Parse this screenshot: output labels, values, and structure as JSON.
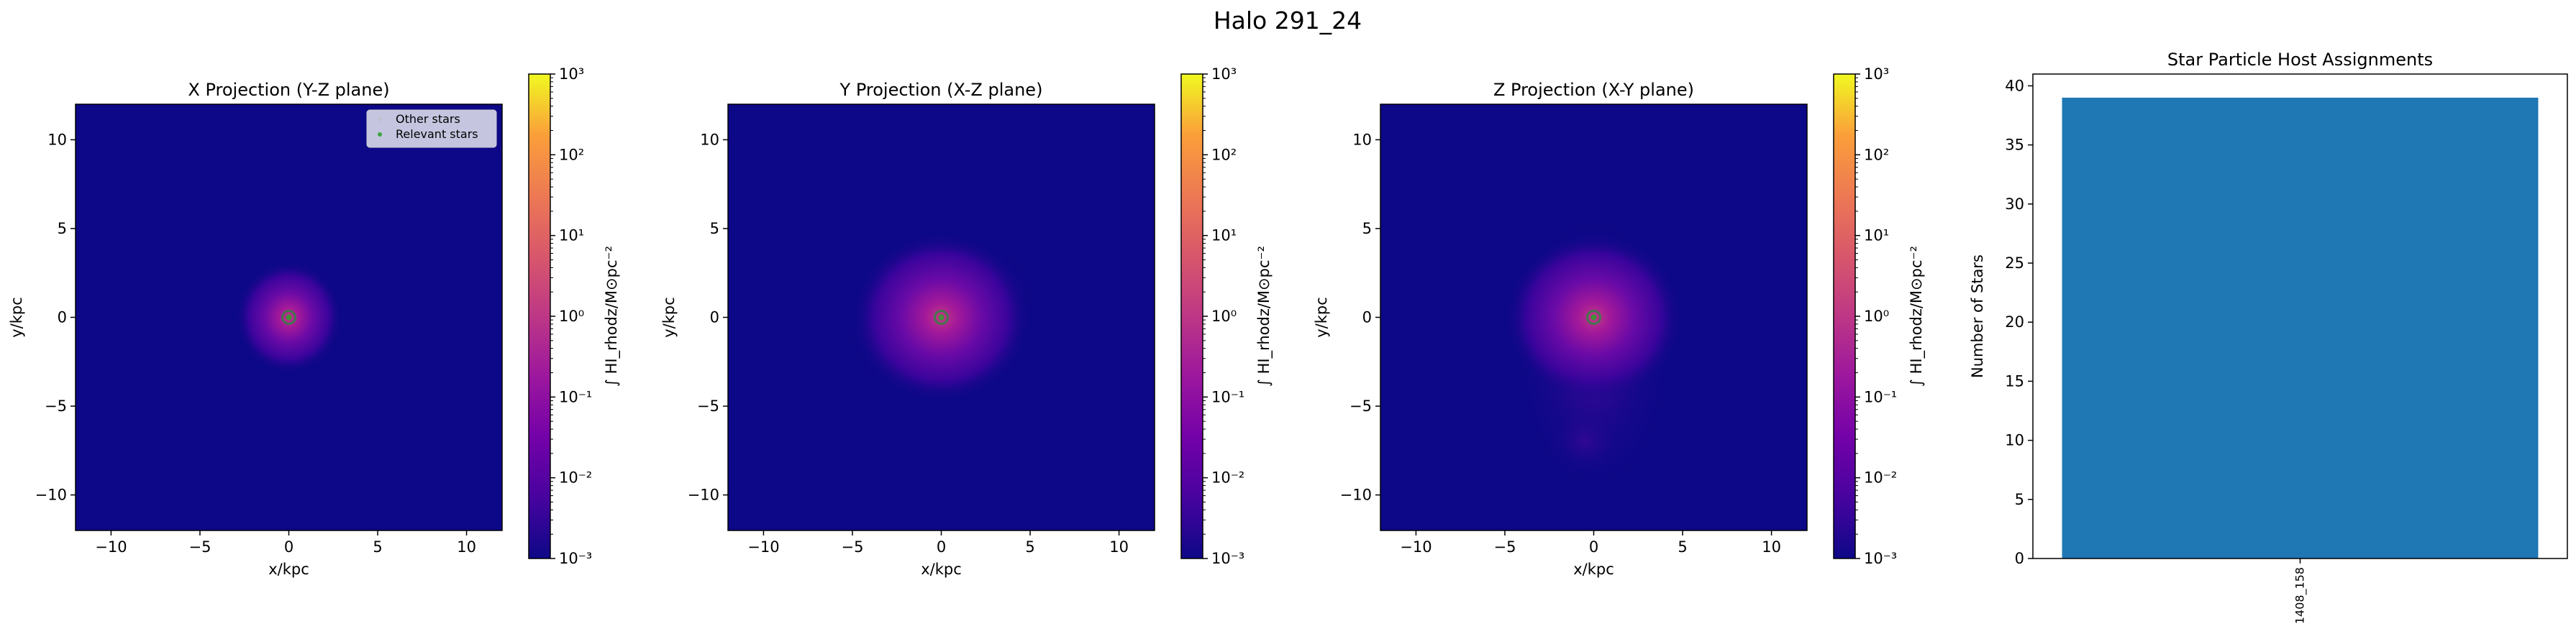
{
  "figure": {
    "suptitle": "Halo 291_24"
  },
  "chart_data": [
    {
      "type": "heatmap",
      "title": "X Projection (Y-Z plane)",
      "xlabel": "x/kpc",
      "ylabel": "y/kpc",
      "xlim": [
        -12,
        12
      ],
      "ylim": [
        -12,
        12
      ],
      "xticks": [
        -10,
        -5,
        0,
        5,
        10
      ],
      "yticks": [
        -10,
        -5,
        0,
        5,
        10
      ],
      "xtick_labels": [
        "−10",
        "−5",
        "0",
        "5",
        "10"
      ],
      "ytick_labels": [
        "−10",
        "−5",
        "0",
        "5",
        "10"
      ],
      "colormap": "plasma",
      "colorscale": "log",
      "color_range": [
        0.001,
        1000
      ],
      "colorbar_label": "∫ HI_rhodz/M⊙pc⁻²",
      "colorbar_ticks": [
        "10³",
        "10²",
        "10¹",
        "10⁰",
        "10⁻¹",
        "10⁻²",
        "10⁻³"
      ],
      "gas_blob": {
        "center": [
          0,
          0
        ],
        "extent_kpc": 3
      },
      "star_points": [
        [
          0,
          0
        ]
      ],
      "legend": {
        "position": "top-right",
        "entries": [
          "Other stars",
          "Relevant stars"
        ]
      }
    },
    {
      "type": "heatmap",
      "title": "Y Projection (X-Z plane)",
      "xlabel": "x/kpc",
      "ylabel": "y/kpc",
      "xlim": [
        -12,
        12
      ],
      "ylim": [
        -12,
        12
      ],
      "xticks": [
        -10,
        -5,
        0,
        5,
        10
      ],
      "yticks": [
        -10,
        -5,
        0,
        5,
        10
      ],
      "xtick_labels": [
        "−10",
        "−5",
        "0",
        "5",
        "10"
      ],
      "ytick_labels": [
        "−10",
        "−5",
        "0",
        "5",
        "10"
      ],
      "colormap": "plasma",
      "colorscale": "log",
      "color_range": [
        0.001,
        1000
      ],
      "colorbar_label": "∫ HI_rhodz/M⊙pc⁻²",
      "colorbar_ticks": [
        "10³",
        "10²",
        "10¹",
        "10⁰",
        "10⁻¹",
        "10⁻²",
        "10⁻³"
      ],
      "gas_blob": {
        "center": [
          0,
          0
        ],
        "extent_kpc": 5
      },
      "star_points": [
        [
          0,
          0
        ]
      ]
    },
    {
      "type": "heatmap",
      "title": "Z Projection (X-Y plane)",
      "xlabel": "x/kpc",
      "ylabel": "y/kpc",
      "xlim": [
        -12,
        12
      ],
      "ylim": [
        -12,
        12
      ],
      "xticks": [
        -10,
        -5,
        0,
        5,
        10
      ],
      "yticks": [
        -10,
        -5,
        0,
        5,
        10
      ],
      "xtick_labels": [
        "−10",
        "−5",
        "0",
        "5",
        "10"
      ],
      "ytick_labels": [
        "−10",
        "−5",
        "0",
        "5",
        "10"
      ],
      "colormap": "plasma",
      "colorscale": "log",
      "color_range": [
        0.001,
        1000
      ],
      "colorbar_label": "∫ HI_rhodz/M⊙pc⁻²",
      "colorbar_ticks": [
        "10³",
        "10²",
        "10¹",
        "10⁰",
        "10⁻¹",
        "10⁻²",
        "10⁻³"
      ],
      "gas_blob": {
        "center": [
          0,
          -2
        ],
        "extent_kpc": 5
      },
      "star_points": [
        [
          0,
          0
        ]
      ]
    },
    {
      "type": "bar",
      "title": "Star Particle Host Assignments",
      "ylabel": "Number of Stars",
      "categories": [
        "1408_158"
      ],
      "values": [
        39
      ],
      "ylim": [
        0,
        41
      ],
      "yticks": [
        0,
        5,
        10,
        15,
        20,
        25,
        30,
        35,
        40
      ],
      "bar_color": "#1f77b4"
    }
  ]
}
